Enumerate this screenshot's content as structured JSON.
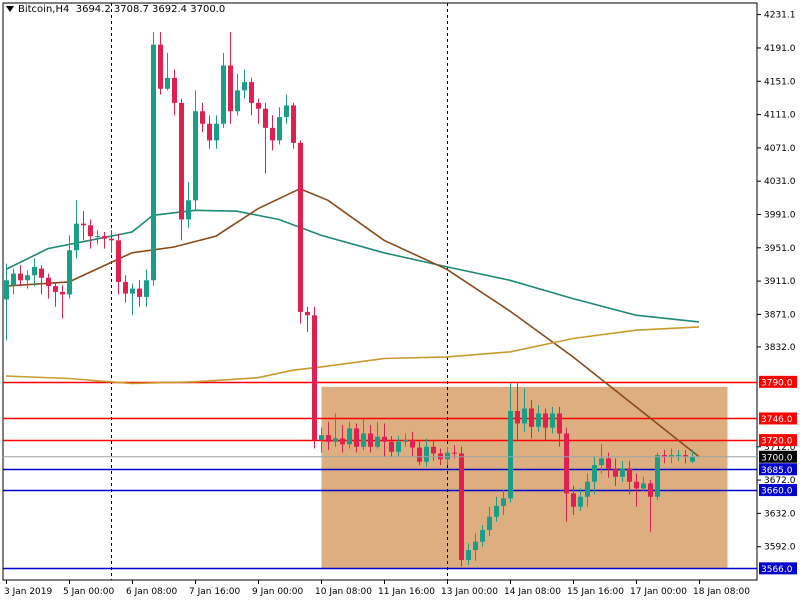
{
  "header": {
    "symbol": "Bitcoin,H4",
    "ohlc": "3694.2 3708.7 3692.4 3700.0"
  },
  "colors": {
    "background": "#ffffff",
    "bull": "#1a9e88",
    "bear": "#e0214f",
    "ma_fast": "#8b4a1a",
    "ma_mid": "#1e8a78",
    "ma_slow": "#c89b2e",
    "zone": "#d6a06a",
    "resistance": "#ff0000",
    "support": "#0000cc",
    "grid": "#000000"
  },
  "chart_data": {
    "type": "candlestick",
    "title": "Bitcoin,H4",
    "ylim": [
      3552,
      4245
    ],
    "y_ticks": [
      4231.1,
      4191.0,
      4151.0,
      4111.0,
      4071.0,
      4031.0,
      3991.0,
      3951.0,
      3911.0,
      3871.0,
      3832.0,
      3712.0,
      3672.0,
      3632.0,
      3592.0
    ],
    "x_tick_labels": [
      "3 Jan 2019",
      "5 Jan 00:00",
      "6 Jan 08:00",
      "7 Jan 16:00",
      "9 Jan 00:00",
      "10 Jan 08:00",
      "11 Jan 16:00",
      "13 Jan 00:00",
      "14 Jan 08:00",
      "15 Jan 16:00",
      "17 Jan 00:00",
      "18 Jan 08:00"
    ],
    "x_tick_index": [
      0,
      9,
      18,
      27,
      36,
      45,
      54,
      63,
      72,
      81,
      90,
      99
    ],
    "day_separators_index": [
      15,
      63
    ],
    "candles": [
      [
        3889,
        3912,
        3840,
        3932
      ],
      [
        3906,
        3920,
        3895,
        3926
      ],
      [
        3920,
        3912,
        3905,
        3930
      ],
      [
        3912,
        3918,
        3902,
        3924
      ],
      [
        3918,
        3928,
        3905,
        3938
      ],
      [
        3926,
        3915,
        3895,
        3930
      ],
      [
        3915,
        3905,
        3890,
        3920
      ],
      [
        3905,
        3898,
        3880,
        3910
      ],
      [
        3898,
        3895,
        3866,
        3906
      ],
      [
        3895,
        3948,
        3890,
        3966
      ],
      [
        3948,
        3980,
        3938,
        4008
      ],
      [
        3980,
        3978,
        3960,
        3995
      ],
      [
        3978,
        3965,
        3950,
        3985
      ],
      [
        3965,
        3965,
        3955,
        3972
      ],
      [
        3965,
        3962,
        3950,
        3970
      ],
      [
        3962,
        3960,
        3945,
        3972
      ],
      [
        3960,
        3910,
        3895,
        3968
      ],
      [
        3910,
        3896,
        3885,
        3918
      ],
      [
        3896,
        3902,
        3870,
        3908
      ],
      [
        3902,
        3892,
        3880,
        3912
      ],
      [
        3892,
        3912,
        3880,
        3925
      ],
      [
        3912,
        4195,
        3905,
        4210
      ],
      [
        4195,
        4142,
        4135,
        4210
      ],
      [
        4142,
        4155,
        4140,
        4185
      ],
      [
        4155,
        4125,
        4110,
        4165
      ],
      [
        4125,
        3985,
        3960,
        4130
      ],
      [
        3985,
        4008,
        3975,
        4030
      ],
      [
        4008,
        4115,
        3995,
        4140
      ],
      [
        4115,
        4100,
        4090,
        4125
      ],
      [
        4100,
        4080,
        4070,
        4110
      ],
      [
        4080,
        4100,
        4070,
        4110
      ],
      [
        4100,
        4170,
        4095,
        4185
      ],
      [
        4170,
        4115,
        4100,
        4210
      ],
      [
        4115,
        4140,
        4110,
        4160
      ],
      [
        4140,
        4150,
        4130,
        4165
      ],
      [
        4150,
        4125,
        4110,
        4155
      ],
      [
        4125,
        4118,
        4100,
        4130
      ],
      [
        4118,
        4095,
        4040,
        4125
      ],
      [
        4095,
        4080,
        4068,
        4110
      ],
      [
        4080,
        4108,
        4075,
        4120
      ],
      [
        4108,
        4122,
        4100,
        4135
      ],
      [
        4122,
        4077,
        4070,
        4125
      ],
      [
        4077,
        3874,
        3860,
        4080
      ],
      [
        3874,
        3870,
        3850,
        3880
      ],
      [
        3870,
        3720,
        3710,
        3880
      ],
      [
        3720,
        3726,
        3705,
        3735
      ],
      [
        3726,
        3718,
        3708,
        3742
      ],
      [
        3718,
        3722,
        3712,
        3752
      ],
      [
        3722,
        3715,
        3705,
        3738
      ],
      [
        3715,
        3734,
        3710,
        3742
      ],
      [
        3734,
        3712,
        3705,
        3740
      ],
      [
        3712,
        3728,
        3708,
        3745
      ],
      [
        3728,
        3712,
        3705,
        3738
      ],
      [
        3712,
        3724,
        3710,
        3742
      ],
      [
        3724,
        3718,
        3700,
        3740
      ],
      [
        3718,
        3706,
        3700,
        3725
      ],
      [
        3706,
        3718,
        3700,
        3725
      ],
      [
        3718,
        3720,
        3712,
        3728
      ],
      [
        3720,
        3711,
        3700,
        3730
      ],
      [
        3711,
        3694,
        3690,
        3720
      ],
      [
        3694,
        3712,
        3688,
        3722
      ],
      [
        3712,
        3704,
        3695,
        3720
      ],
      [
        3704,
        3697,
        3690,
        3710
      ],
      [
        3697,
        3705,
        3690,
        3712
      ],
      [
        3705,
        3704,
        3698,
        3714
      ],
      [
        3704,
        3576,
        3568,
        3712
      ],
      [
        3576,
        3588,
        3570,
        3596
      ],
      [
        3588,
        3598,
        3575,
        3608
      ],
      [
        3598,
        3612,
        3592,
        3618
      ],
      [
        3612,
        3628,
        3605,
        3640
      ],
      [
        3628,
        3641,
        3622,
        3652
      ],
      [
        3641,
        3650,
        3630,
        3660
      ],
      [
        3650,
        3755,
        3645,
        3788
      ],
      [
        3755,
        3740,
        3720,
        3790
      ],
      [
        3740,
        3758,
        3730,
        3782
      ],
      [
        3758,
        3736,
        3722,
        3768
      ],
      [
        3736,
        3752,
        3730,
        3762
      ],
      [
        3752,
        3735,
        3720,
        3758
      ],
      [
        3735,
        3752,
        3728,
        3760
      ],
      [
        3752,
        3728,
        3712,
        3760
      ],
      [
        3728,
        3656,
        3622,
        3735
      ],
      [
        3656,
        3640,
        3630,
        3665
      ],
      [
        3640,
        3652,
        3635,
        3662
      ],
      [
        3652,
        3670,
        3640,
        3680
      ],
      [
        3670,
        3690,
        3655,
        3700
      ],
      [
        3690,
        3698,
        3680,
        3715
      ],
      [
        3698,
        3686,
        3675,
        3705
      ],
      [
        3686,
        3676,
        3665,
        3698
      ],
      [
        3676,
        3686,
        3670,
        3695
      ],
      [
        3686,
        3670,
        3655,
        3695
      ],
      [
        3670,
        3662,
        3640,
        3680
      ],
      [
        3662,
        3668,
        3658,
        3676
      ],
      [
        3668,
        3652,
        3610,
        3672
      ],
      [
        3652,
        3702,
        3648,
        3705
      ],
      [
        3702,
        3700,
        3692,
        3708
      ],
      [
        3700,
        3702,
        3692,
        3710
      ],
      [
        3702,
        3702,
        3695,
        3708
      ],
      [
        3702,
        3700,
        3692,
        3708
      ],
      [
        3694.2,
        3700,
        3692.4,
        3708.7
      ]
    ],
    "series": [
      {
        "name": "",
        "color": "#1e8a78",
        "points": [
          [
            0,
            3925
          ],
          [
            6,
            3950
          ],
          [
            12,
            3960
          ],
          [
            18,
            3970
          ],
          [
            21,
            3990
          ],
          [
            27,
            3996
          ],
          [
            33,
            3995
          ],
          [
            39,
            3985
          ],
          [
            45,
            3966
          ],
          [
            54,
            3945
          ],
          [
            63,
            3928
          ],
          [
            72,
            3912
          ],
          [
            81,
            3890
          ],
          [
            90,
            3870
          ],
          [
            99,
            3862
          ]
        ]
      },
      {
        "name": "",
        "color": "#8b4a1a",
        "points": [
          [
            0,
            3905
          ],
          [
            9,
            3910
          ],
          [
            18,
            3945
          ],
          [
            24,
            3952
          ],
          [
            30,
            3965
          ],
          [
            36,
            3998
          ],
          [
            42,
            4022
          ],
          [
            46,
            4008
          ],
          [
            54,
            3960
          ],
          [
            63,
            3925
          ],
          [
            72,
            3875
          ],
          [
            81,
            3820
          ],
          [
            90,
            3760
          ],
          [
            99,
            3700
          ]
        ]
      },
      {
        "name": "",
        "color": "#c89b2e",
        "points": [
          [
            0,
            3797
          ],
          [
            9,
            3794
          ],
          [
            18,
            3788
          ],
          [
            27,
            3790
          ],
          [
            36,
            3795
          ],
          [
            41,
            3804
          ],
          [
            45,
            3808
          ],
          [
            54,
            3818
          ],
          [
            63,
            3820
          ],
          [
            72,
            3826
          ],
          [
            81,
            3842
          ],
          [
            90,
            3852
          ],
          [
            99,
            3856
          ]
        ]
      }
    ],
    "zone": {
      "x_start_index": 45,
      "x_end_index": 103,
      "y_low": 3566,
      "y_high": 3784
    },
    "h_lines": [
      {
        "value": 3790.0,
        "label": "3790.0",
        "type": "resistance"
      },
      {
        "value": 3746.0,
        "label": "3746.0",
        "type": "resistance"
      },
      {
        "value": 3720.0,
        "label": "3720.0",
        "type": "resistance"
      },
      {
        "value": 3685.0,
        "label": "3685.0",
        "type": "support"
      },
      {
        "value": 3660.0,
        "label": "3660.0",
        "type": "support"
      },
      {
        "value": 3566.0,
        "label": "3566.0",
        "type": "support"
      }
    ],
    "current_price": {
      "value": 3700.0,
      "label": "3700.0"
    }
  }
}
